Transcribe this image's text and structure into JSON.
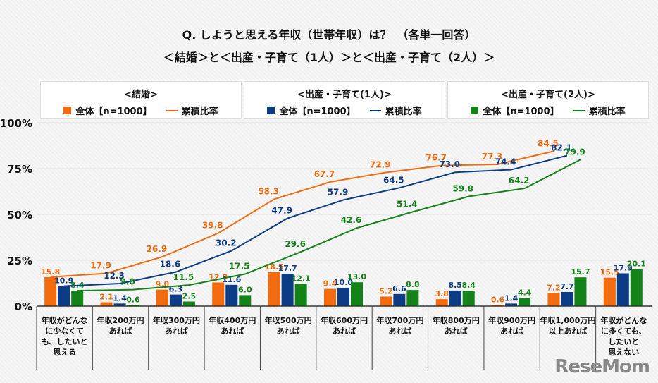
{
  "chart_data": {
    "type": "bar",
    "title": "Q. しようと思える年収（世帯年収）は？　（各単一回答）",
    "subtitle": "＜結婚＞と＜出産・子育て（1人）＞と＜出産・子育て（2人）＞",
    "categories": [
      "年収がどんなに少なくても、したいと思える",
      "年収200万円あれば",
      "年収300万円あれば",
      "年収400万円あれば",
      "年収500万円あれば",
      "年収600万円あれば",
      "年収700万円あれば",
      "年収800万円あれば",
      "年収900万円あれば",
      "年収1,000万円以上あれば",
      "年収がどんなに多くても、したいと思えない"
    ],
    "category_lines": [
      [
        "年収がどんな",
        "に少なくて",
        "も、したいと",
        "思える"
      ],
      [
        "年収200万円",
        "あれば"
      ],
      [
        "年収300万円",
        "あれば"
      ],
      [
        "年収400万円",
        "あれば"
      ],
      [
        "年収500万円",
        "あれば"
      ],
      [
        "年収600万円",
        "あれば"
      ],
      [
        "年収700万円",
        "あれば"
      ],
      [
        "年収800万円",
        "あれば"
      ],
      [
        "年収900万円",
        "あれば"
      ],
      [
        "年収1,000万円",
        "以上あれば"
      ],
      [
        "年収がどんな",
        "に多くても、",
        "したいと",
        "思えない"
      ]
    ],
    "ylim": [
      0,
      100
    ],
    "yticks": [
      "0%",
      "25%",
      "50%",
      "75%",
      "100%"
    ],
    "grid": true,
    "legend_placement": "top",
    "groups": [
      {
        "header": "<結婚>",
        "bar_name": "全体【n=1000】",
        "line_name": "累積比率",
        "color": "#f26b0f",
        "bars": [
          15.8,
          2.1,
          9.0,
          12.9,
          18.5,
          9.4,
          5.2,
          3.8,
          0.6,
          7.2,
          15.5
        ],
        "cumulative": [
          15.8,
          17.9,
          26.9,
          39.8,
          58.3,
          67.7,
          72.9,
          76.7,
          77.3,
          84.5
        ]
      },
      {
        "header": "<出産・子育て(1人)>",
        "bar_name": "全体【n=1000】",
        "line_name": "累積比率",
        "color": "#0d3c86",
        "bars": [
          10.9,
          1.4,
          6.3,
          11.6,
          17.7,
          10.0,
          6.6,
          8.5,
          1.4,
          7.7,
          17.9
        ],
        "cumulative": [
          10.9,
          12.3,
          18.6,
          30.2,
          47.9,
          57.9,
          64.5,
          73.0,
          74.4,
          82.1
        ]
      },
      {
        "header": "<出産・子育て(2人)>",
        "bar_name": "全体【n=1000】",
        "line_name": "累積比率",
        "color": "#13831a",
        "bars": [
          8.4,
          0.6,
          2.5,
          6.0,
          12.1,
          13.0,
          8.8,
          8.4,
          4.4,
          15.7,
          20.1
        ],
        "cumulative": [
          8.4,
          9.0,
          11.5,
          17.5,
          29.6,
          42.6,
          51.4,
          59.8,
          64.2,
          79.9
        ]
      }
    ]
  },
  "watermark": "ReseMom"
}
